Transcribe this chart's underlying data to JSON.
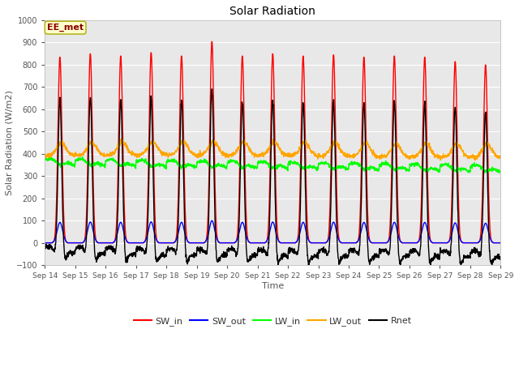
{
  "title": "Solar Radiation",
  "xlabel": "Time",
  "ylabel": "Solar Radiation (W/m2)",
  "ylim": [
    -100,
    1000
  ],
  "legend_label": "EE_met",
  "legend_text_color": "#8B0000",
  "legend_box_color": "#FFFFCC",
  "legend_box_edge": "#AAAA00",
  "background_color": "#FFFFFF",
  "plot_bg_color": "#E8E8E8",
  "xtick_labels": [
    "Sep 14",
    "Sep 15",
    "Sep 16",
    "Sep 17",
    "Sep 18",
    "Sep 19",
    "Sep 20",
    "Sep 21",
    "Sep 22",
    "Sep 23",
    "Sep 24",
    "Sep 25",
    "Sep 26",
    "Sep 27",
    "Sep 28",
    "Sep 29"
  ],
  "series": {
    "SW_in": {
      "color": "red",
      "lw": 1.0
    },
    "SW_out": {
      "color": "blue",
      "lw": 1.0
    },
    "LW_in": {
      "color": "#00FF00",
      "lw": 1.0
    },
    "LW_out": {
      "color": "orange",
      "lw": 1.0
    },
    "Rnet": {
      "color": "black",
      "lw": 1.0
    }
  },
  "n_days": 15,
  "pts_per_day": 144
}
